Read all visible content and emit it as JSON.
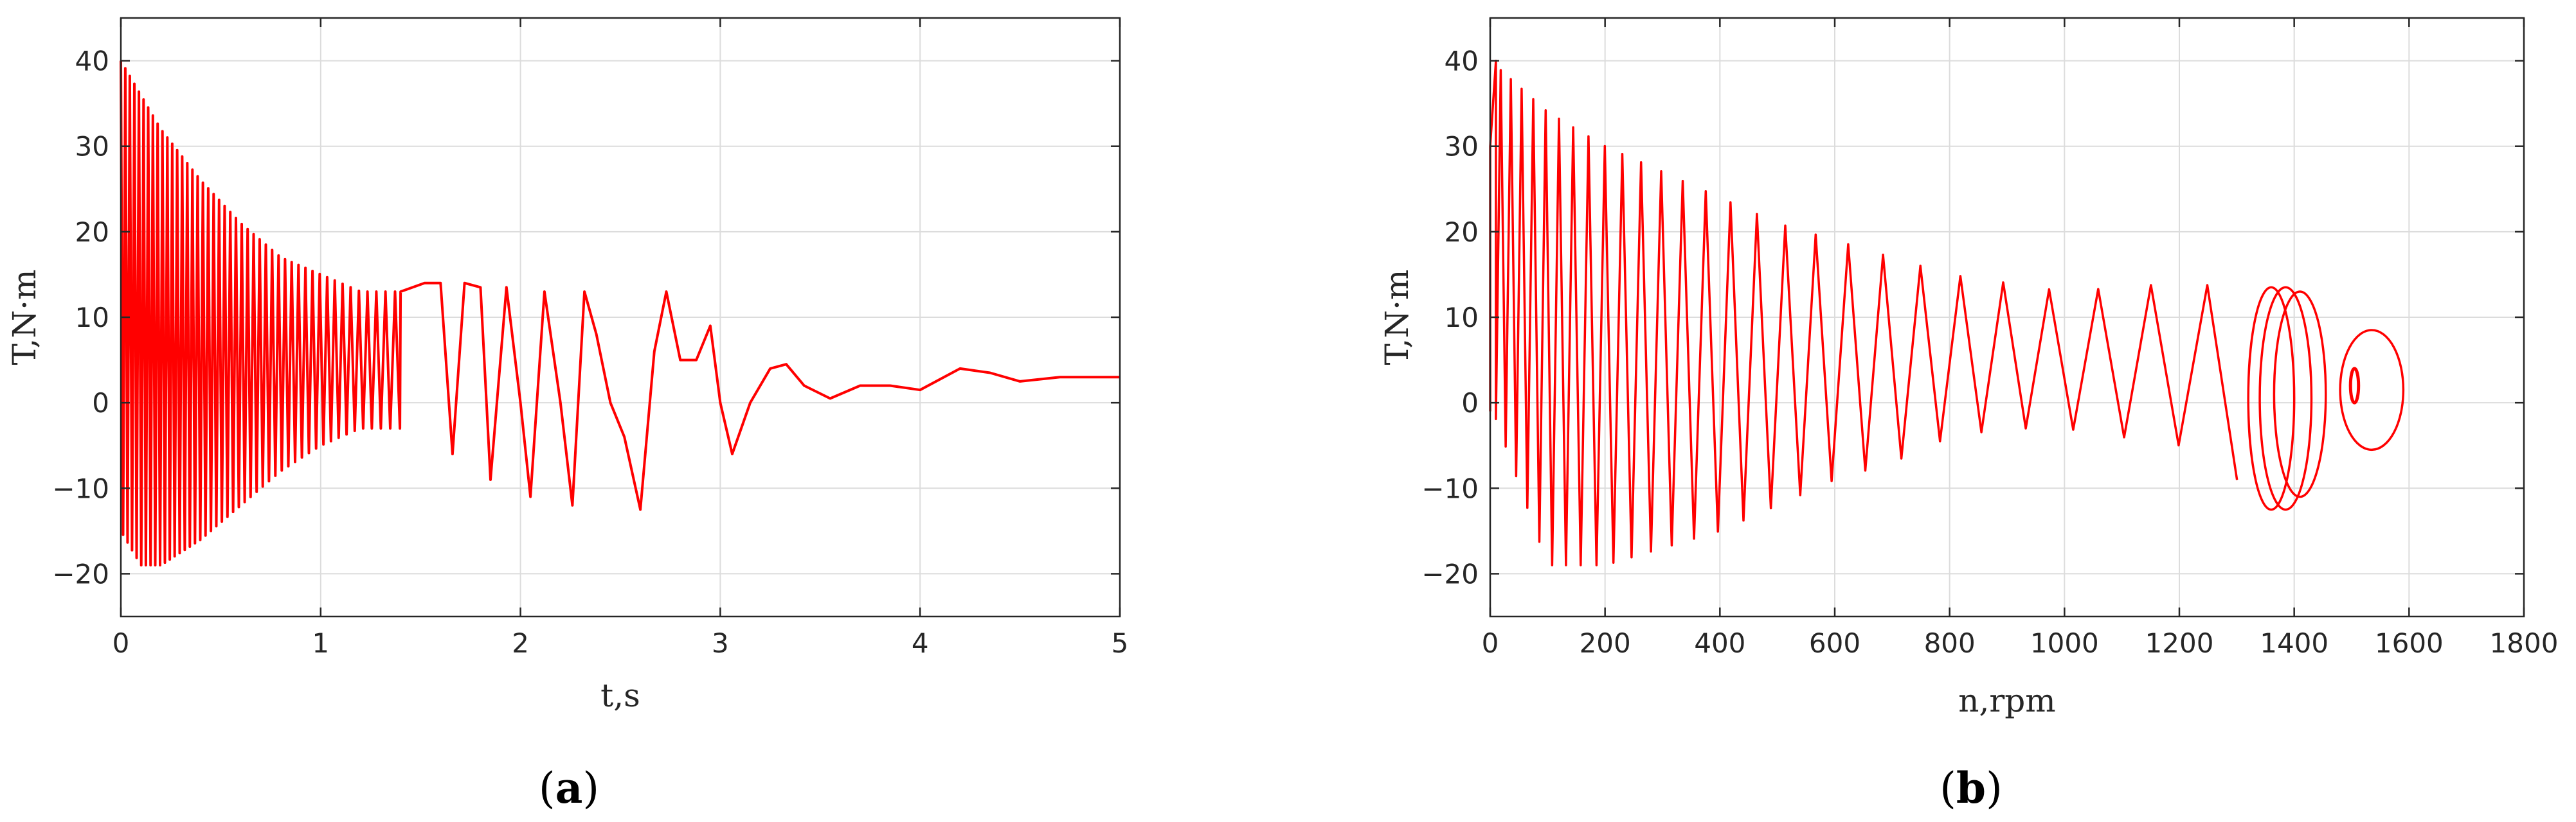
{
  "chart_data": [
    {
      "type": "line",
      "panel_label": "a",
      "xlabel": "t,s",
      "ylabel": "T,N·m",
      "xlim": [
        0,
        5
      ],
      "ylim": [
        -25,
        45
      ],
      "xticks": [
        0,
        1,
        2,
        3,
        4,
        5
      ],
      "yticks": [
        -20,
        -10,
        0,
        10,
        20,
        30,
        40
      ],
      "grid": true,
      "color": "#ff0000",
      "series": [
        {
          "x": [
            0,
            0.1,
            0.2,
            0.3,
            0.4,
            0.5,
            0.6,
            0.7,
            0.8,
            0.9,
            1.0,
            1.1,
            1.2,
            1.3,
            1.4,
            1.52,
            1.6,
            1.66,
            1.72,
            1.8,
            1.85,
            1.93,
            2.0,
            2.05,
            2.12,
            2.2,
            2.26,
            2.32,
            2.38,
            2.45,
            2.52,
            2.6,
            2.67,
            2.73,
            2.8,
            2.88,
            2.95,
            3.0,
            3.06,
            3.15,
            3.25,
            3.33,
            3.42,
            3.55,
            3.7,
            3.85,
            4.0,
            4.2,
            4.35,
            4.5,
            4.7,
            4.85,
            5.0
          ],
          "y": [
            40,
            37,
            33,
            30,
            27,
            24,
            21,
            19,
            17,
            15,
            14,
            13,
            13,
            13,
            13,
            14,
            14,
            -6,
            14,
            13.5,
            -9,
            13.5,
            0,
            -11,
            13,
            0,
            -12,
            13,
            8,
            0,
            -4,
            -12.5,
            6,
            13,
            5,
            5,
            9,
            0,
            -6,
            0,
            4,
            4.5,
            2,
            0.5,
            2,
            2,
            1.5,
            4,
            3.5,
            2.5,
            3,
            3,
            3
          ]
        }
      ]
    },
    {
      "type": "line",
      "panel_label": "b",
      "xlabel": "n,rpm",
      "ylabel": "T,N·m",
      "xlim": [
        0,
        1800
      ],
      "ylim": [
        -25,
        45
      ],
      "xticks": [
        0,
        200,
        400,
        600,
        800,
        1000,
        1200,
        1400,
        1600,
        1800
      ],
      "yticks": [
        -20,
        -10,
        0,
        10,
        20,
        30,
        40
      ],
      "grid": true,
      "color": "#ff0000",
      "series": [
        {
          "x": [
            0,
            100,
            200,
            300,
            400,
            500,
            600,
            700,
            800,
            900,
            1000,
            1100,
            1200,
            1300,
            1350,
            1400,
            1450,
            1500,
            1550,
            1580,
            1590
          ],
          "y_upper": [
            40,
            34,
            30,
            27,
            24,
            21,
            19,
            17,
            15,
            14,
            13,
            13.5,
            14,
            13.5,
            13,
            13,
            10,
            6,
            8,
            9,
            0
          ],
          "y_lower": [
            0,
            -19,
            -19,
            -17,
            -15,
            -12,
            -9,
            -7,
            -4,
            -3,
            -3,
            -4,
            -5,
            -9,
            -12,
            -12,
            -5,
            0,
            -5,
            -6,
            0
          ]
        }
      ]
    }
  ]
}
